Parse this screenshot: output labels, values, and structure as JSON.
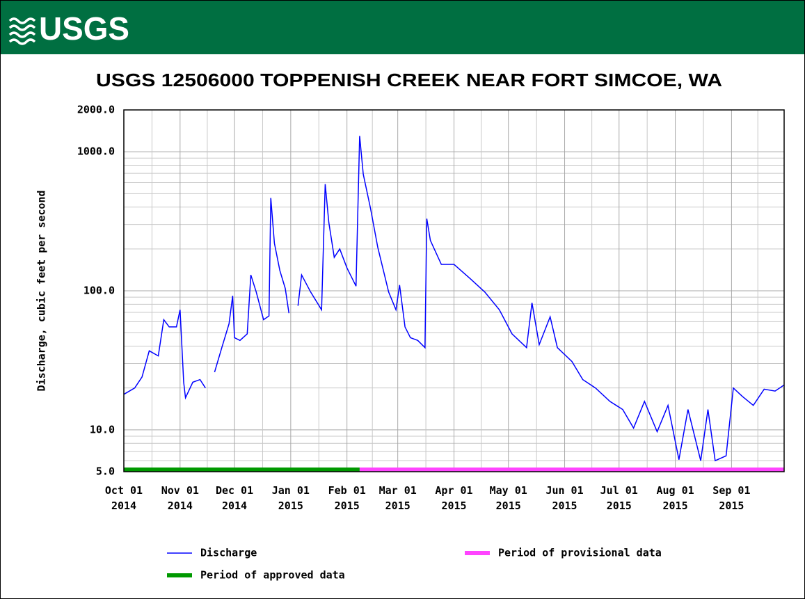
{
  "header": {
    "logo_text": "USGS"
  },
  "chart_data": {
    "type": "line",
    "title": "USGS 12506000 TOPPENISH CREEK NEAR FORT SIMCOE, WA",
    "y_label": "Discharge, cubic feet per second",
    "log_y": true,
    "grid": true,
    "ylim": [
      5,
      2000
    ],
    "yticks": [
      {
        "value": 5,
        "label": "5.0"
      },
      {
        "value": 10,
        "label": "10.0"
      },
      {
        "value": 100,
        "label": "100.0"
      },
      {
        "value": 1000,
        "label": "1000.0"
      },
      {
        "value": 2000,
        "label": "2000.0"
      }
    ],
    "xlim": [
      "2014-10-01",
      "2015-09-30"
    ],
    "xticks": [
      {
        "value": "2014-10-01",
        "label": "Oct 01 2014"
      },
      {
        "value": "2014-11-01",
        "label": "Nov 01 2014"
      },
      {
        "value": "2014-12-01",
        "label": "Dec 01 2014"
      },
      {
        "value": "2015-01-01",
        "label": "Jan 01 2015"
      },
      {
        "value": "2015-02-01",
        "label": "Feb 01 2015"
      },
      {
        "value": "2015-03-01",
        "label": "Mar 01 2015"
      },
      {
        "value": "2015-04-01",
        "label": "Apr 01 2015"
      },
      {
        "value": "2015-05-01",
        "label": "May 01 2015"
      },
      {
        "value": "2015-06-01",
        "label": "Jun 01 2015"
      },
      {
        "value": "2015-07-01",
        "label": "Jul 01 2015"
      },
      {
        "value": "2015-08-01",
        "label": "Aug 01 2015"
      },
      {
        "value": "2015-09-01",
        "label": "Sep 01 2015"
      }
    ],
    "x": [
      "2014-10-01",
      "2014-10-07",
      "2014-10-11",
      "2014-10-15",
      "2014-10-20",
      "2014-10-23",
      "2014-10-26",
      "2014-10-30",
      "2014-11-01",
      "2014-11-03",
      "2014-11-04",
      "2014-11-08",
      "2014-11-12",
      "2014-11-15",
      "2014-11-17",
      "2014-11-20",
      "2014-11-24",
      "2014-11-28",
      "2014-11-30",
      "2014-12-01",
      "2014-12-04",
      "2014-12-08",
      "2014-12-10",
      "2014-12-13",
      "2014-12-17",
      "2014-12-20",
      "2014-12-21",
      "2014-12-23",
      "2014-12-26",
      "2014-12-29",
      "2014-12-31",
      "2015-01-02",
      "2015-01-05",
      "2015-01-07",
      "2015-01-12",
      "2015-01-18",
      "2015-01-20",
      "2015-01-22",
      "2015-01-25",
      "2015-01-28",
      "2015-02-01",
      "2015-02-06",
      "2015-02-08",
      "2015-02-10",
      "2015-02-14",
      "2015-02-18",
      "2015-02-24",
      "2015-02-28",
      "2015-03-02",
      "2015-03-05",
      "2015-03-08",
      "2015-03-12",
      "2015-03-16",
      "2015-03-17",
      "2015-03-19",
      "2015-03-25",
      "2015-04-01",
      "2015-04-10",
      "2015-04-18",
      "2015-04-26",
      "2015-05-03",
      "2015-05-11",
      "2015-05-14",
      "2015-05-18",
      "2015-05-24",
      "2015-05-28",
      "2015-06-05",
      "2015-06-11",
      "2015-06-18",
      "2015-06-26",
      "2015-07-03",
      "2015-07-09",
      "2015-07-15",
      "2015-07-22",
      "2015-07-28",
      "2015-08-03",
      "2015-08-08",
      "2015-08-15",
      "2015-08-19",
      "2015-08-23",
      "2015-08-29",
      "2015-09-02",
      "2015-09-07",
      "2015-09-13",
      "2015-09-19",
      "2015-09-25",
      "2015-09-30"
    ],
    "series": [
      {
        "name": "Discharge",
        "color": "#0000ff",
        "values": [
          18,
          20,
          24,
          37,
          34,
          62,
          55,
          55,
          73,
          22,
          17,
          22,
          23,
          20,
          null,
          26,
          39,
          58,
          92,
          46,
          44,
          49,
          130,
          98,
          62,
          66,
          465,
          220,
          140,
          104,
          69,
          null,
          78,
          130,
          98,
          73,
          585,
          310,
          174,
          200,
          146,
          108,
          1300,
          690,
          390,
          205,
          98,
          73,
          110,
          55,
          46,
          44,
          39,
          330,
          230,
          155,
          155,
          122,
          98,
          73,
          49,
          39,
          82,
          41,
          65,
          39,
          31,
          23,
          20,
          16,
          14,
          10.3,
          16,
          9.7,
          15,
          6.1,
          14,
          6,
          14,
          6,
          6.5,
          20,
          17.4,
          15,
          19.6,
          19,
          21
        ]
      }
    ],
    "periods": [
      {
        "name": "Period of approved data",
        "color": "#009900",
        "start": "2014-10-01",
        "end": "2015-02-08"
      },
      {
        "name": "Period of provisional data",
        "color": "#ff44ff",
        "start": "2015-02-08",
        "end": "2015-09-30"
      }
    ]
  }
}
